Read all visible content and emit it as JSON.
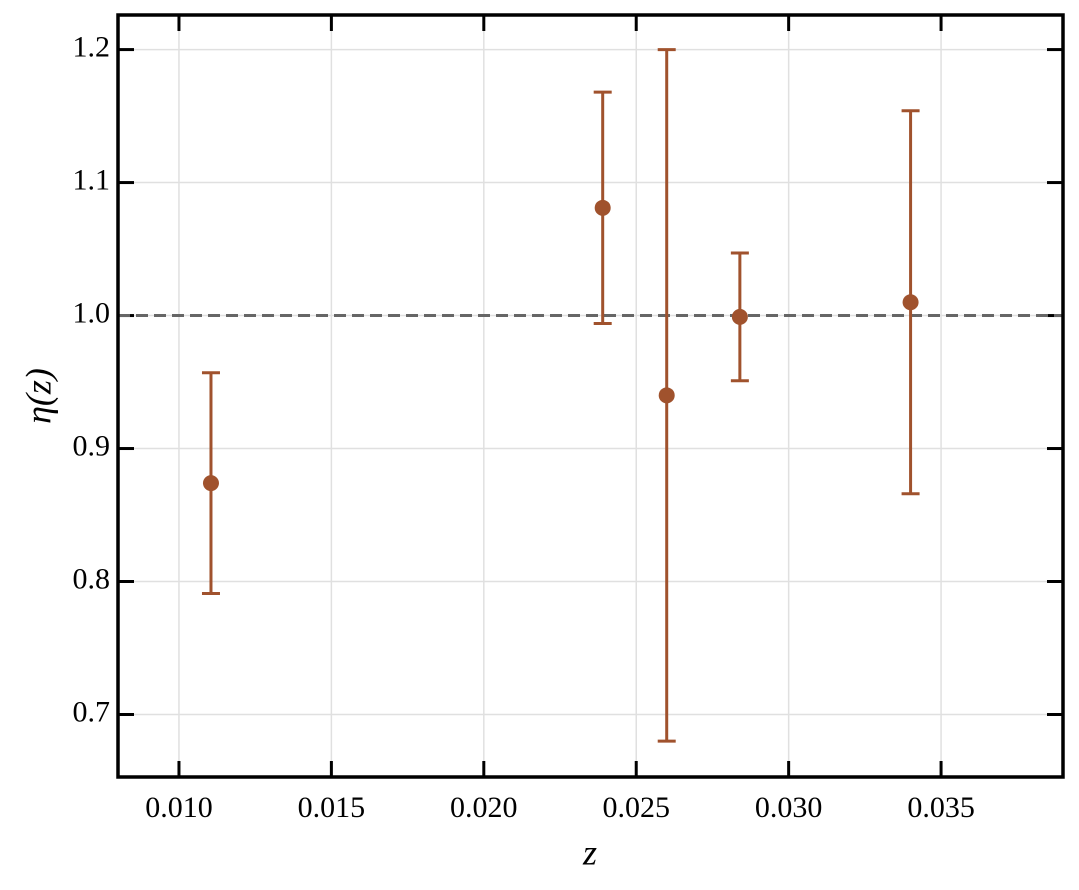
{
  "chart_data": {
    "type": "scatter",
    "x_label": "z",
    "y_label": "η(z)",
    "x": [
      0.01105,
      0.0239,
      0.026,
      0.0284,
      0.034
    ],
    "series": [
      {
        "color": "#a0522d",
        "values": [
          0.874,
          1.081,
          0.94,
          0.999,
          1.01
        ],
        "errors": [
          0.083,
          0.087,
          0.26,
          0.048,
          0.144
        ]
      }
    ],
    "reference_line": {
      "value": 1.0,
      "color": "#666666"
    },
    "xlim": [
      0.008,
      0.039
    ],
    "ylim": [
      0.653,
      1.226
    ],
    "xticks": [
      {
        "value": 0.01,
        "label": "0.010"
      },
      {
        "value": 0.015,
        "label": "0.015"
      },
      {
        "value": 0.02,
        "label": "0.020"
      },
      {
        "value": 0.025,
        "label": "0.025"
      },
      {
        "value": 0.03,
        "label": "0.030"
      },
      {
        "value": 0.035,
        "label": "0.035"
      }
    ],
    "yticks": [
      0.7,
      0.8,
      0.9,
      {
        "value": 1.0,
        "label": "1.0"
      },
      1.1,
      1.2
    ],
    "grid": true
  }
}
